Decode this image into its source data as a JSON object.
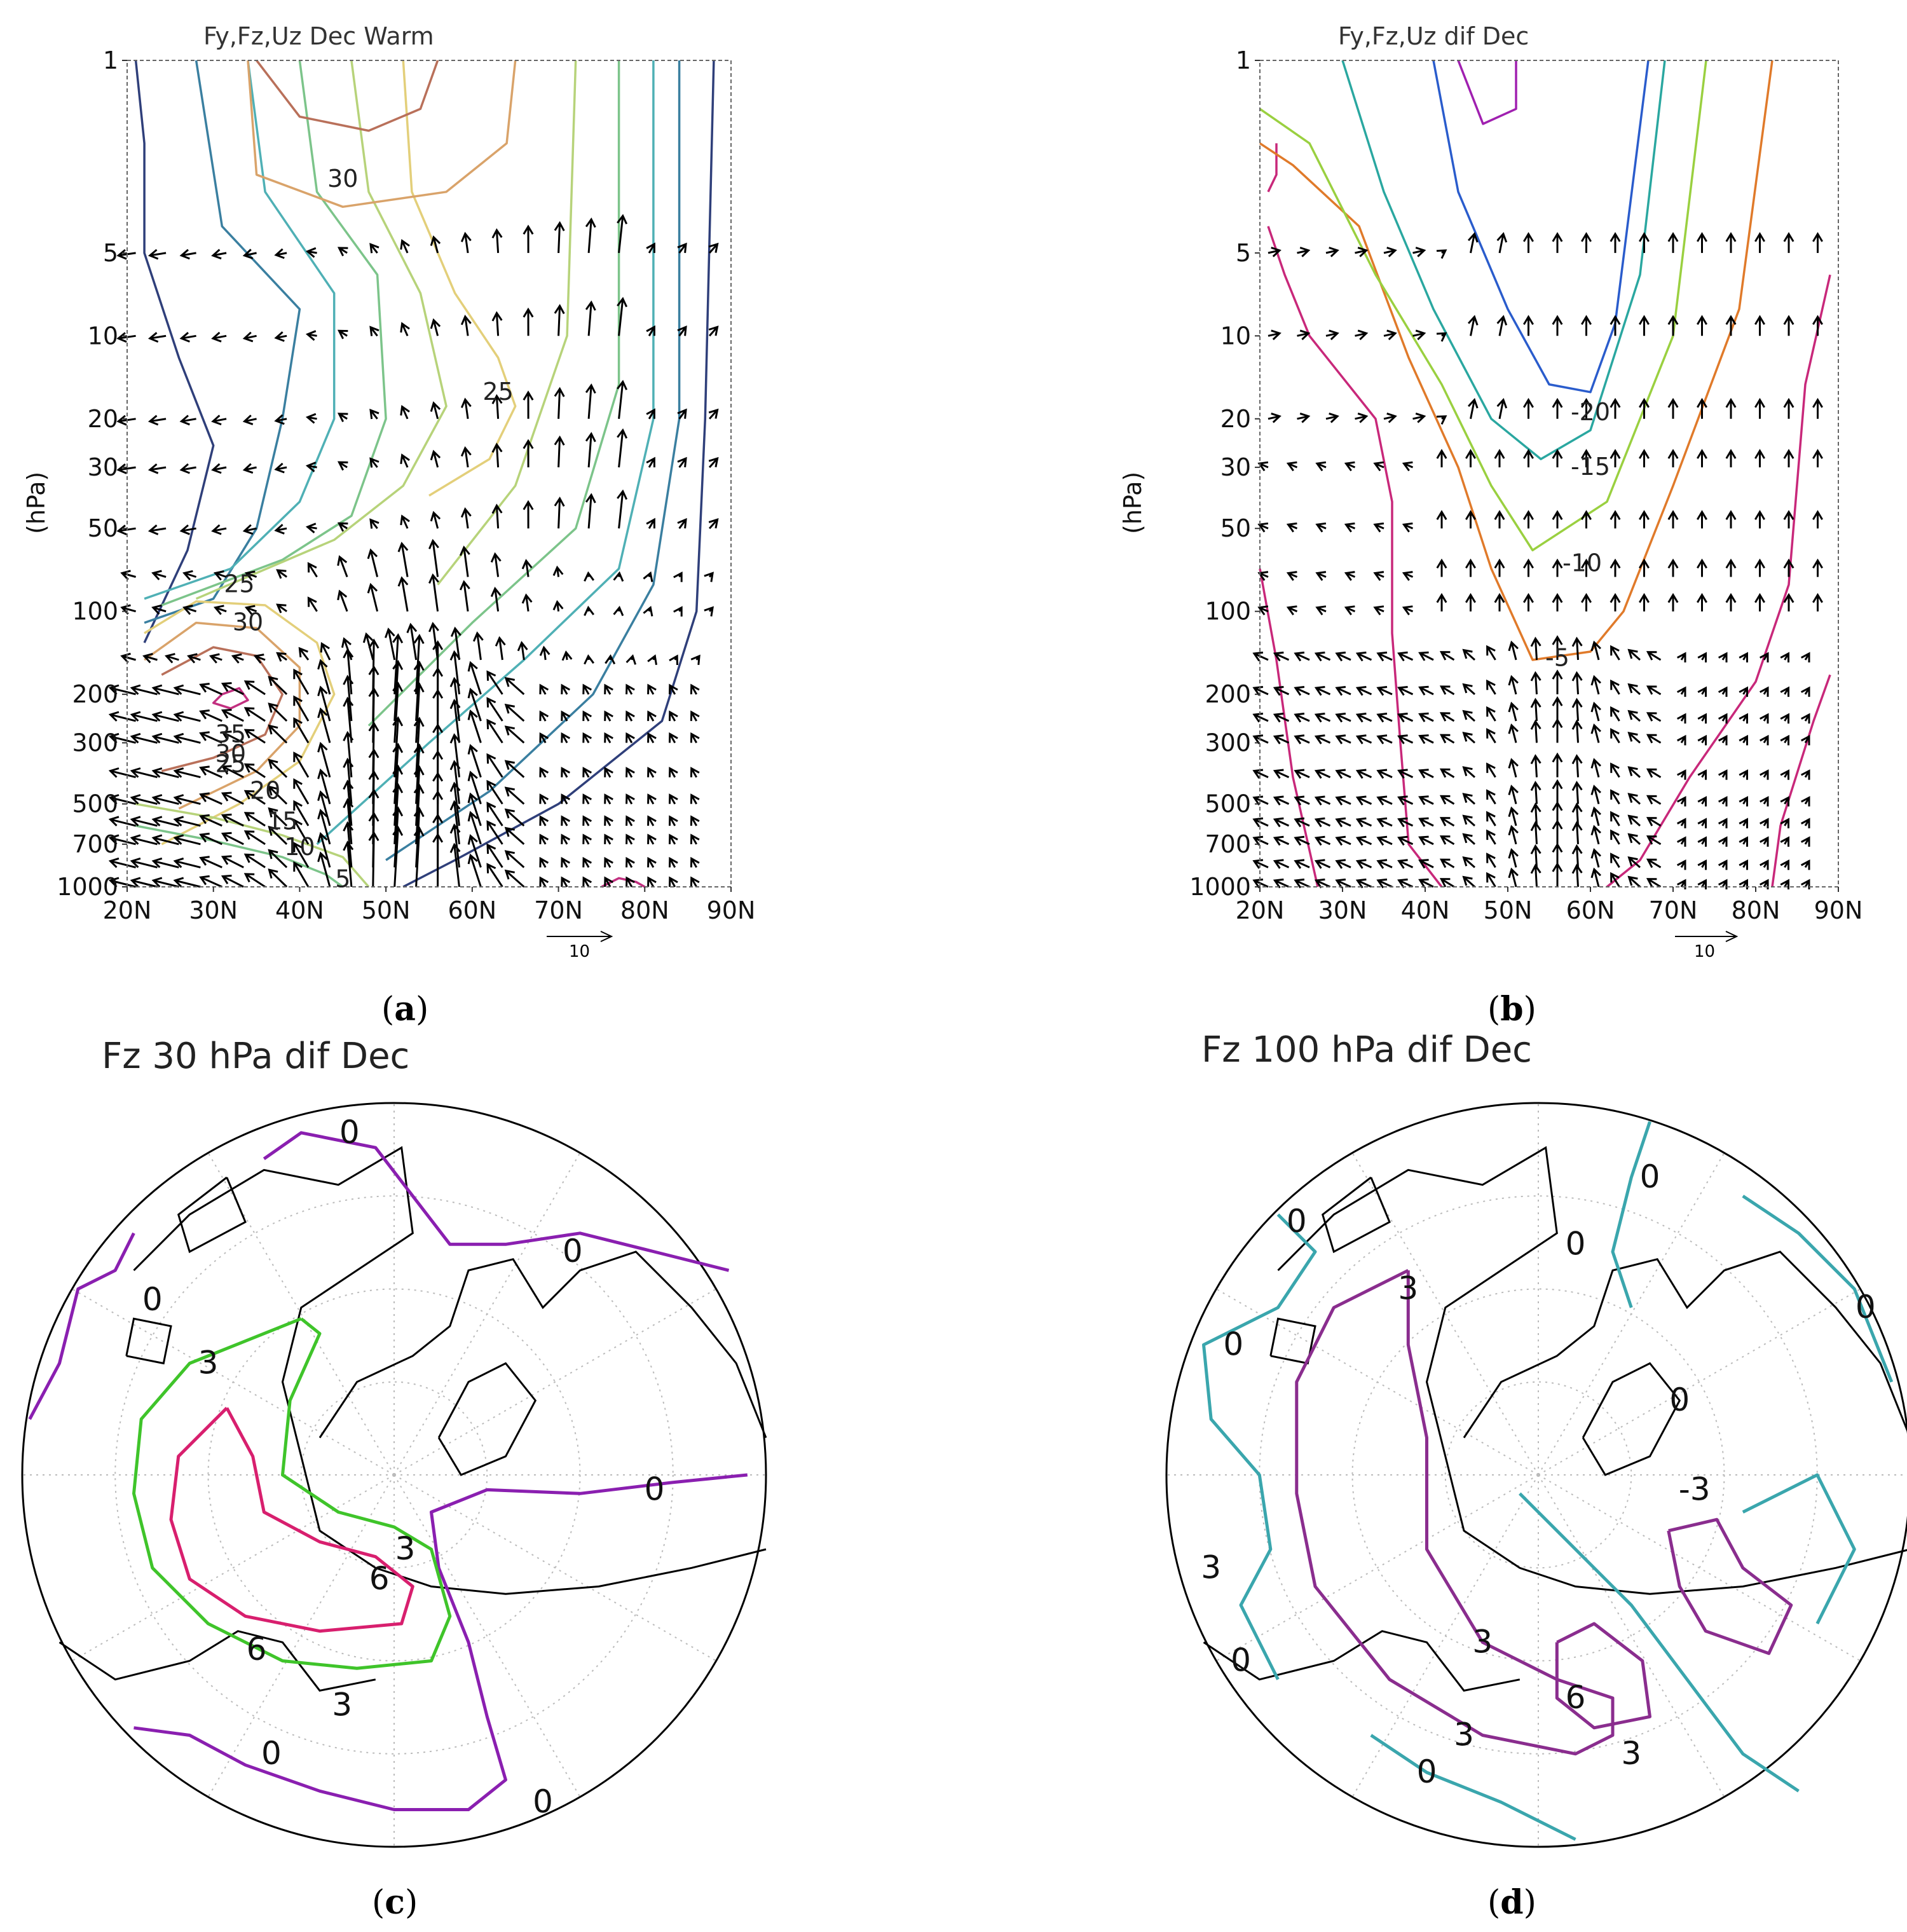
{
  "chart_data": [
    {
      "type": "contour",
      "panel_label": "a",
      "title": "Fy,Fz,Uz Dec Warm",
      "ylabel": "(hPa)",
      "y_scale": "log-pressure",
      "x_ticks": [
        "20N",
        "30N",
        "40N",
        "50N",
        "60N",
        "70N",
        "80N",
        "90N"
      ],
      "x_values": [
        20,
        30,
        40,
        50,
        60,
        70,
        80,
        90
      ],
      "y_ticks": [
        "1",
        "5",
        "10",
        "20",
        "30",
        "50",
        "100",
        "200",
        "300",
        "500",
        "700",
        "1000"
      ],
      "y_values": [
        1,
        5,
        10,
        20,
        30,
        50,
        100,
        200,
        300,
        500,
        700,
        1000
      ],
      "vector_scale_label": "10",
      "contour_labels": [
        {
          "text": "30",
          "lat": 45,
          "p": 2.7
        },
        {
          "text": "25",
          "lat": 63,
          "p": 16
        },
        {
          "text": "25",
          "lat": 33,
          "p": 80
        },
        {
          "text": "30",
          "lat": 34,
          "p": 110
        },
        {
          "text": "35",
          "lat": 32,
          "p": 280
        },
        {
          "text": "30",
          "lat": 32,
          "p": 330
        },
        {
          "text": "25",
          "lat": 32,
          "p": 360
        },
        {
          "text": "20",
          "lat": 36,
          "p": 450
        },
        {
          "text": "15",
          "lat": 38,
          "p": 580
        },
        {
          "text": "10",
          "lat": 40,
          "p": 720
        },
        {
          "text": "5",
          "lat": 45,
          "p": 940
        }
      ]
    },
    {
      "type": "contour",
      "panel_label": "b",
      "title": "Fy,Fz,Uz dif Dec",
      "ylabel": "(hPa)",
      "y_scale": "log-pressure",
      "x_ticks": [
        "20N",
        "30N",
        "40N",
        "50N",
        "60N",
        "70N",
        "80N",
        "90N"
      ],
      "x_values": [
        20,
        30,
        40,
        50,
        60,
        70,
        80,
        90
      ],
      "y_ticks": [
        "1",
        "5",
        "10",
        "20",
        "30",
        "50",
        "100",
        "200",
        "300",
        "500",
        "700",
        "1000"
      ],
      "y_values": [
        1,
        5,
        10,
        20,
        30,
        50,
        100,
        200,
        300,
        500,
        700,
        1000
      ],
      "vector_scale_label": "10",
      "contour_labels": [
        {
          "text": "-20",
          "lat": 60,
          "p": 19
        },
        {
          "text": "-15",
          "lat": 60,
          "p": 30
        },
        {
          "text": "-10",
          "lat": 59,
          "p": 67
        },
        {
          "text": "-5",
          "lat": 56,
          "p": 148
        }
      ]
    },
    {
      "type": "polar-map",
      "panel_label": "c",
      "title": "Fz 30 hPa dif Dec",
      "contour_labels": [
        "0",
        "0",
        "0",
        "0",
        "0",
        "0",
        "3",
        "3",
        "3",
        "6",
        "6"
      ]
    },
    {
      "type": "polar-map",
      "panel_label": "d",
      "title": "Fz 100 hPa dif Dec",
      "contour_labels": [
        "0",
        "0",
        "0",
        "0",
        "0",
        "0",
        "0",
        "0",
        "3",
        "3",
        "3",
        "3",
        "3",
        "6",
        "-3"
      ]
    }
  ],
  "colors": {
    "contour_a": [
      "#2f3f7a",
      "#3a7fa0",
      "#4fb0b5",
      "#7cc48a",
      "#b7d37a",
      "#e3cf7a",
      "#d9a36a",
      "#b9705a",
      "#8a4a5a",
      "#c23080"
    ],
    "contour_b": [
      "#c8287a",
      "#e07a2a",
      "#9ad040",
      "#2aa7a0",
      "#2a5ccc",
      "#a020b0"
    ],
    "contour_c": {
      "zero": "#8a1fb0",
      "three": "#3fc42a",
      "six": "#d81f6e"
    },
    "contour_d": {
      "zero": "#3aa6ad",
      "three": "#8a2d8e"
    },
    "arrow": "#000000",
    "coast": "#000000"
  }
}
